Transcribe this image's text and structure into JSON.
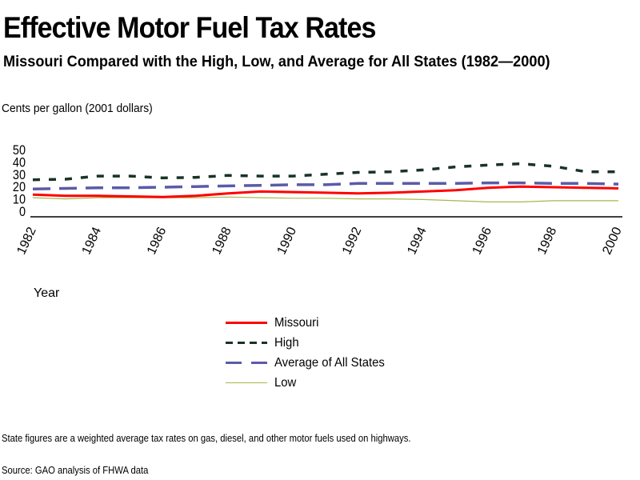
{
  "header": {
    "title": "Effective Motor Fuel Tax Rates",
    "subtitle": "Missouri Compared with the High, Low, and Average for All States (1982—2000)",
    "units": "Cents  per  gallon    (2001 dollars)"
  },
  "footer": {
    "note": "State figures are a  weighted average tax rates on gas, diesel, and other motor fuels used on highways.",
    "source": "Source: GAO analysis of FHWA data"
  },
  "chart_data": {
    "type": "line",
    "title": "Effective Motor Fuel Tax Rates",
    "subtitle": "Missouri Compared with the High, Low, and Average for All States (1982—2000)",
    "xlabel": "Year",
    "ylabel": "Cents per gallon (2001 dollars)",
    "ylim": [
      0,
      50
    ],
    "xlim": [
      1982,
      2000
    ],
    "yticks": [
      0,
      10,
      20,
      30,
      40,
      50
    ],
    "xticks": [
      "1982",
      "1984",
      "1986",
      "1988",
      "1990",
      "1992",
      "1994",
      "1996",
      "1998",
      "2000"
    ],
    "grid": false,
    "legend_position": "bottom-center",
    "x": [
      1982,
      1983,
      1984,
      1985,
      1986,
      1987,
      1988,
      1989,
      1990,
      1991,
      1992,
      1993,
      1994,
      1995,
      1996,
      1997,
      1998,
      1999,
      2000
    ],
    "series": [
      {
        "name": "Missouri",
        "color": "#ff0000",
        "style": "solid",
        "values": [
          13.5,
          12.5,
          12.5,
          12,
          11.5,
          12.5,
          14.5,
          16,
          15.5,
          15,
          14.5,
          15,
          16,
          17,
          19,
          20,
          19.5,
          19,
          18.5
        ]
      },
      {
        "name": "High",
        "color": "#1a3324",
        "style": "short-dash",
        "values": [
          25.5,
          26,
          28.5,
          28.5,
          27,
          27.5,
          29,
          28.5,
          28.5,
          30,
          31.5,
          32,
          33.5,
          36,
          37.5,
          38.5,
          36.5,
          32,
          32
        ]
      },
      {
        "name": "Average of All States",
        "color": "#5b5ba8",
        "style": "long-dash",
        "values": [
          18,
          18.5,
          19,
          19,
          19.5,
          20,
          20.5,
          21,
          21.5,
          21.5,
          22.5,
          22.5,
          22.5,
          22.5,
          23,
          23,
          22.5,
          22.5,
          22
        ]
      },
      {
        "name": "Low",
        "color": "#a6b84a",
        "style": "thin-solid",
        "values": [
          11,
          10,
          11,
          11,
          11,
          11,
          11.5,
          11,
          10.5,
          10.5,
          10,
          10,
          9.5,
          8.5,
          7.5,
          7.5,
          8.5,
          8.5,
          8.5
        ]
      }
    ]
  }
}
